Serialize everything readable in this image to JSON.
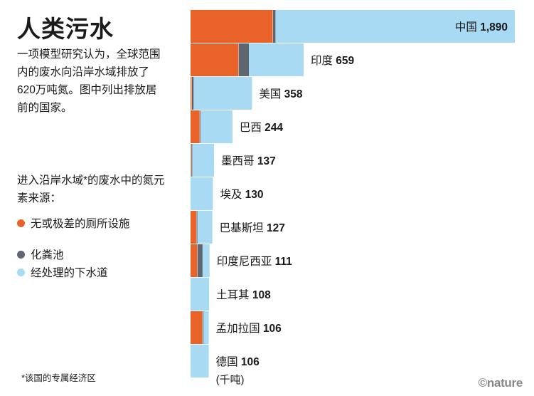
{
  "title": "人类污水",
  "description": "一项模型研究认为，全球范围内的废水向沿岸水域排放了620万吨氮。图中列出排放居前的国家。",
  "legend": {
    "heading": "进入沿岸水域*的废水中的氮元素来源：",
    "items": [
      {
        "label": "无或极差的厕所设施",
        "color": "#e8622a"
      },
      {
        "label": "化粪池",
        "color": "#5f6670"
      },
      {
        "label": "经处理的下水道",
        "color": "#a8daf4"
      }
    ]
  },
  "footnote": "*该国的专属经济区",
  "brand": "©nature",
  "unit": "(千吨)",
  "colors": {
    "none": "#e8622a",
    "septic": "#5f6670",
    "sewer": "#a8daf4"
  },
  "chart_data": {
    "type": "bar",
    "orientation": "horizontal",
    "stacked": true,
    "title": "人类污水",
    "unit": "千吨",
    "categories": [
      "中国",
      "印度",
      "美国",
      "巴西",
      "墨西哥",
      "埃及",
      "巴基斯坦",
      "印度尼西亚",
      "土耳其",
      "孟加拉国",
      "德国"
    ],
    "totals": [
      1890,
      659,
      358,
      244,
      137,
      130,
      127,
      111,
      108,
      106,
      106
    ],
    "total_labels": [
      "1,890",
      "659",
      "358",
      "244",
      "137",
      "130",
      "127",
      "111",
      "108",
      "106",
      "106"
    ],
    "series": [
      {
        "name": "无或极差的厕所设施",
        "values": [
          480,
          280,
          8,
          55,
          5,
          0,
          35,
          40,
          0,
          70,
          0
        ]
      },
      {
        "name": "化粪池",
        "values": [
          15,
          60,
          10,
          4,
          5,
          0,
          5,
          30,
          0,
          5,
          0
        ]
      },
      {
        "name": "经处理的下水道",
        "values": [
          1395,
          319,
          340,
          185,
          127,
          130,
          87,
          41,
          108,
          31,
          106
        ]
      }
    ]
  }
}
